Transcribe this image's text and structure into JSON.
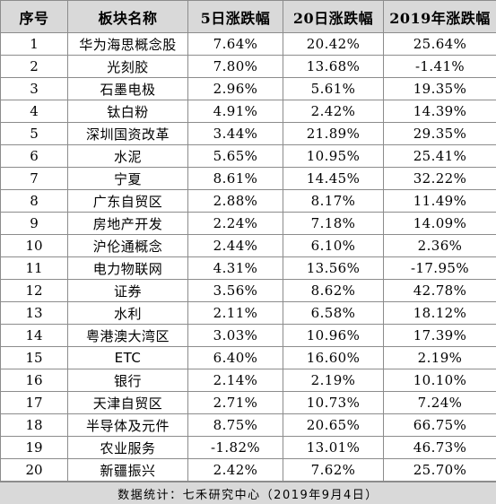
{
  "table": {
    "headers": [
      "序号",
      "板块名称",
      "5日涨跌幅",
      "20日涨跌幅",
      "2019年涨跌幅"
    ],
    "rows": [
      [
        "1",
        "华为海思概念股",
        "7.64%",
        "20.42%",
        "25.64%"
      ],
      [
        "2",
        "光刻胶",
        "7.80%",
        "13.68%",
        "-1.41%"
      ],
      [
        "3",
        "石墨电极",
        "2.96%",
        "5.61%",
        "19.35%"
      ],
      [
        "4",
        "钛白粉",
        "4.91%",
        "2.42%",
        "14.39%"
      ],
      [
        "5",
        "深圳国资改革",
        "3.44%",
        "21.89%",
        "29.35%"
      ],
      [
        "6",
        "水泥",
        "5.65%",
        "10.95%",
        "25.41%"
      ],
      [
        "7",
        "宁夏",
        "8.61%",
        "14.45%",
        "32.22%"
      ],
      [
        "8",
        "广东自贸区",
        "2.88%",
        "8.17%",
        "11.49%"
      ],
      [
        "9",
        "房地产开发",
        "2.24%",
        "7.18%",
        "14.09%"
      ],
      [
        "10",
        "沪伦通概念",
        "2.44%",
        "6.10%",
        "2.36%"
      ],
      [
        "11",
        "电力物联网",
        "4.31%",
        "13.56%",
        "-17.95%"
      ],
      [
        "12",
        "证券",
        "3.56%",
        "8.62%",
        "42.78%"
      ],
      [
        "13",
        "水利",
        "2.11%",
        "6.58%",
        "18.12%"
      ],
      [
        "14",
        "粤港澳大湾区",
        "3.03%",
        "10.96%",
        "17.39%"
      ],
      [
        "15",
        "ETC",
        "6.40%",
        "16.60%",
        "2.19%"
      ],
      [
        "16",
        "银行",
        "2.14%",
        "2.19%",
        "10.10%"
      ],
      [
        "17",
        "天津自贸区",
        "2.71%",
        "10.73%",
        "7.24%"
      ],
      [
        "18",
        "半导体及元件",
        "8.75%",
        "20.65%",
        "66.75%"
      ],
      [
        "19",
        "农业服务",
        "-1.82%",
        "13.01%",
        "46.73%"
      ],
      [
        "20",
        "新疆振兴",
        "2.42%",
        "7.62%",
        "25.70%"
      ]
    ]
  },
  "footer": {
    "text": "数据统计：七禾研究中心（2019年9月4日）"
  }
}
